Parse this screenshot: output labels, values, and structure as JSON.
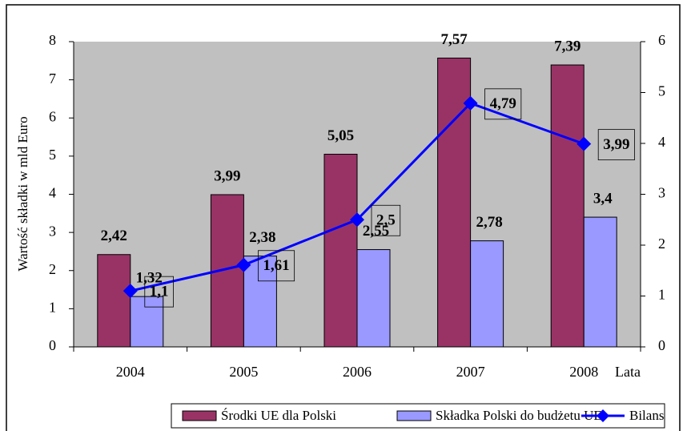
{
  "chart_data": {
    "type": "bar",
    "categories": [
      "2004",
      "2005",
      "2006",
      "2007",
      "2008"
    ],
    "x_label": "Lata",
    "y_label": "Wartość składki w mld Euro",
    "ylim": [
      0,
      8
    ],
    "yticks": [
      0,
      1,
      2,
      3,
      4,
      5,
      6,
      7,
      8
    ],
    "y2lim": [
      0,
      6
    ],
    "y2ticks": [
      0,
      1,
      2,
      3,
      4,
      5,
      6
    ],
    "series": [
      {
        "name": "Środki UE dla Polski",
        "color": "#993366",
        "type": "bar",
        "values": [
          2.42,
          3.99,
          5.05,
          7.57,
          7.39
        ],
        "value_labels": [
          "2,42",
          "3,99",
          "5,05",
          "7,57",
          "7,39"
        ]
      },
      {
        "name": "Składka Polski do budżetu UE",
        "color": "#9999ff",
        "type": "bar",
        "values": [
          1.32,
          2.38,
          2.55,
          2.78,
          3.4
        ],
        "value_labels": [
          "1,32",
          "2,38",
          "2,55",
          "2,78",
          "3,4"
        ]
      },
      {
        "name": "Bilans",
        "color": "#0000ff",
        "type": "line",
        "axis": "y2",
        "values": [
          1.1,
          1.61,
          2.5,
          4.79,
          3.99
        ],
        "value_labels": [
          "1,1",
          "1,61",
          "2,5",
          "4,79",
          "3,99"
        ]
      }
    ]
  }
}
